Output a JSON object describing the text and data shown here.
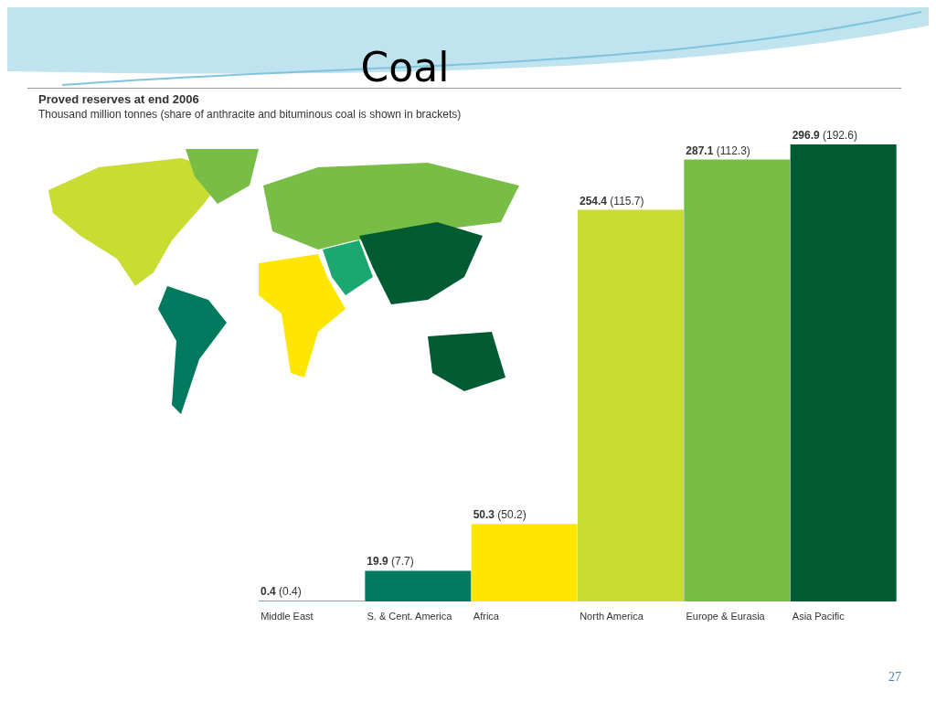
{
  "chart_data": {
    "type": "bar",
    "title": "Coal",
    "subtitle": "Proved reserves at end 2006",
    "ylabel": "Thousand million tonnes (share of anthracite and bituminous coal is shown in brackets)",
    "categories": [
      "Middle East",
      "S. & Cent. America",
      "Africa",
      "North America",
      "Europe & Eurasia",
      "Asia Pacific"
    ],
    "values": [
      0.4,
      19.9,
      50.3,
      254.4,
      287.1,
      296.9
    ],
    "colors": [
      "#1aa870",
      "#007a5e",
      "#ffe600",
      "#c8dc32",
      "#78be46",
      "#005a32"
    ],
    "value_labels": [
      "0.4 (0.4)",
      "19.9 (7.7)",
      "50.3 (50.2)",
      "254.4 (115.7)",
      "287.1 (112.3)",
      "296.9 (192.6)"
    ],
    "annotations": [
      "27"
    ]
  }
}
